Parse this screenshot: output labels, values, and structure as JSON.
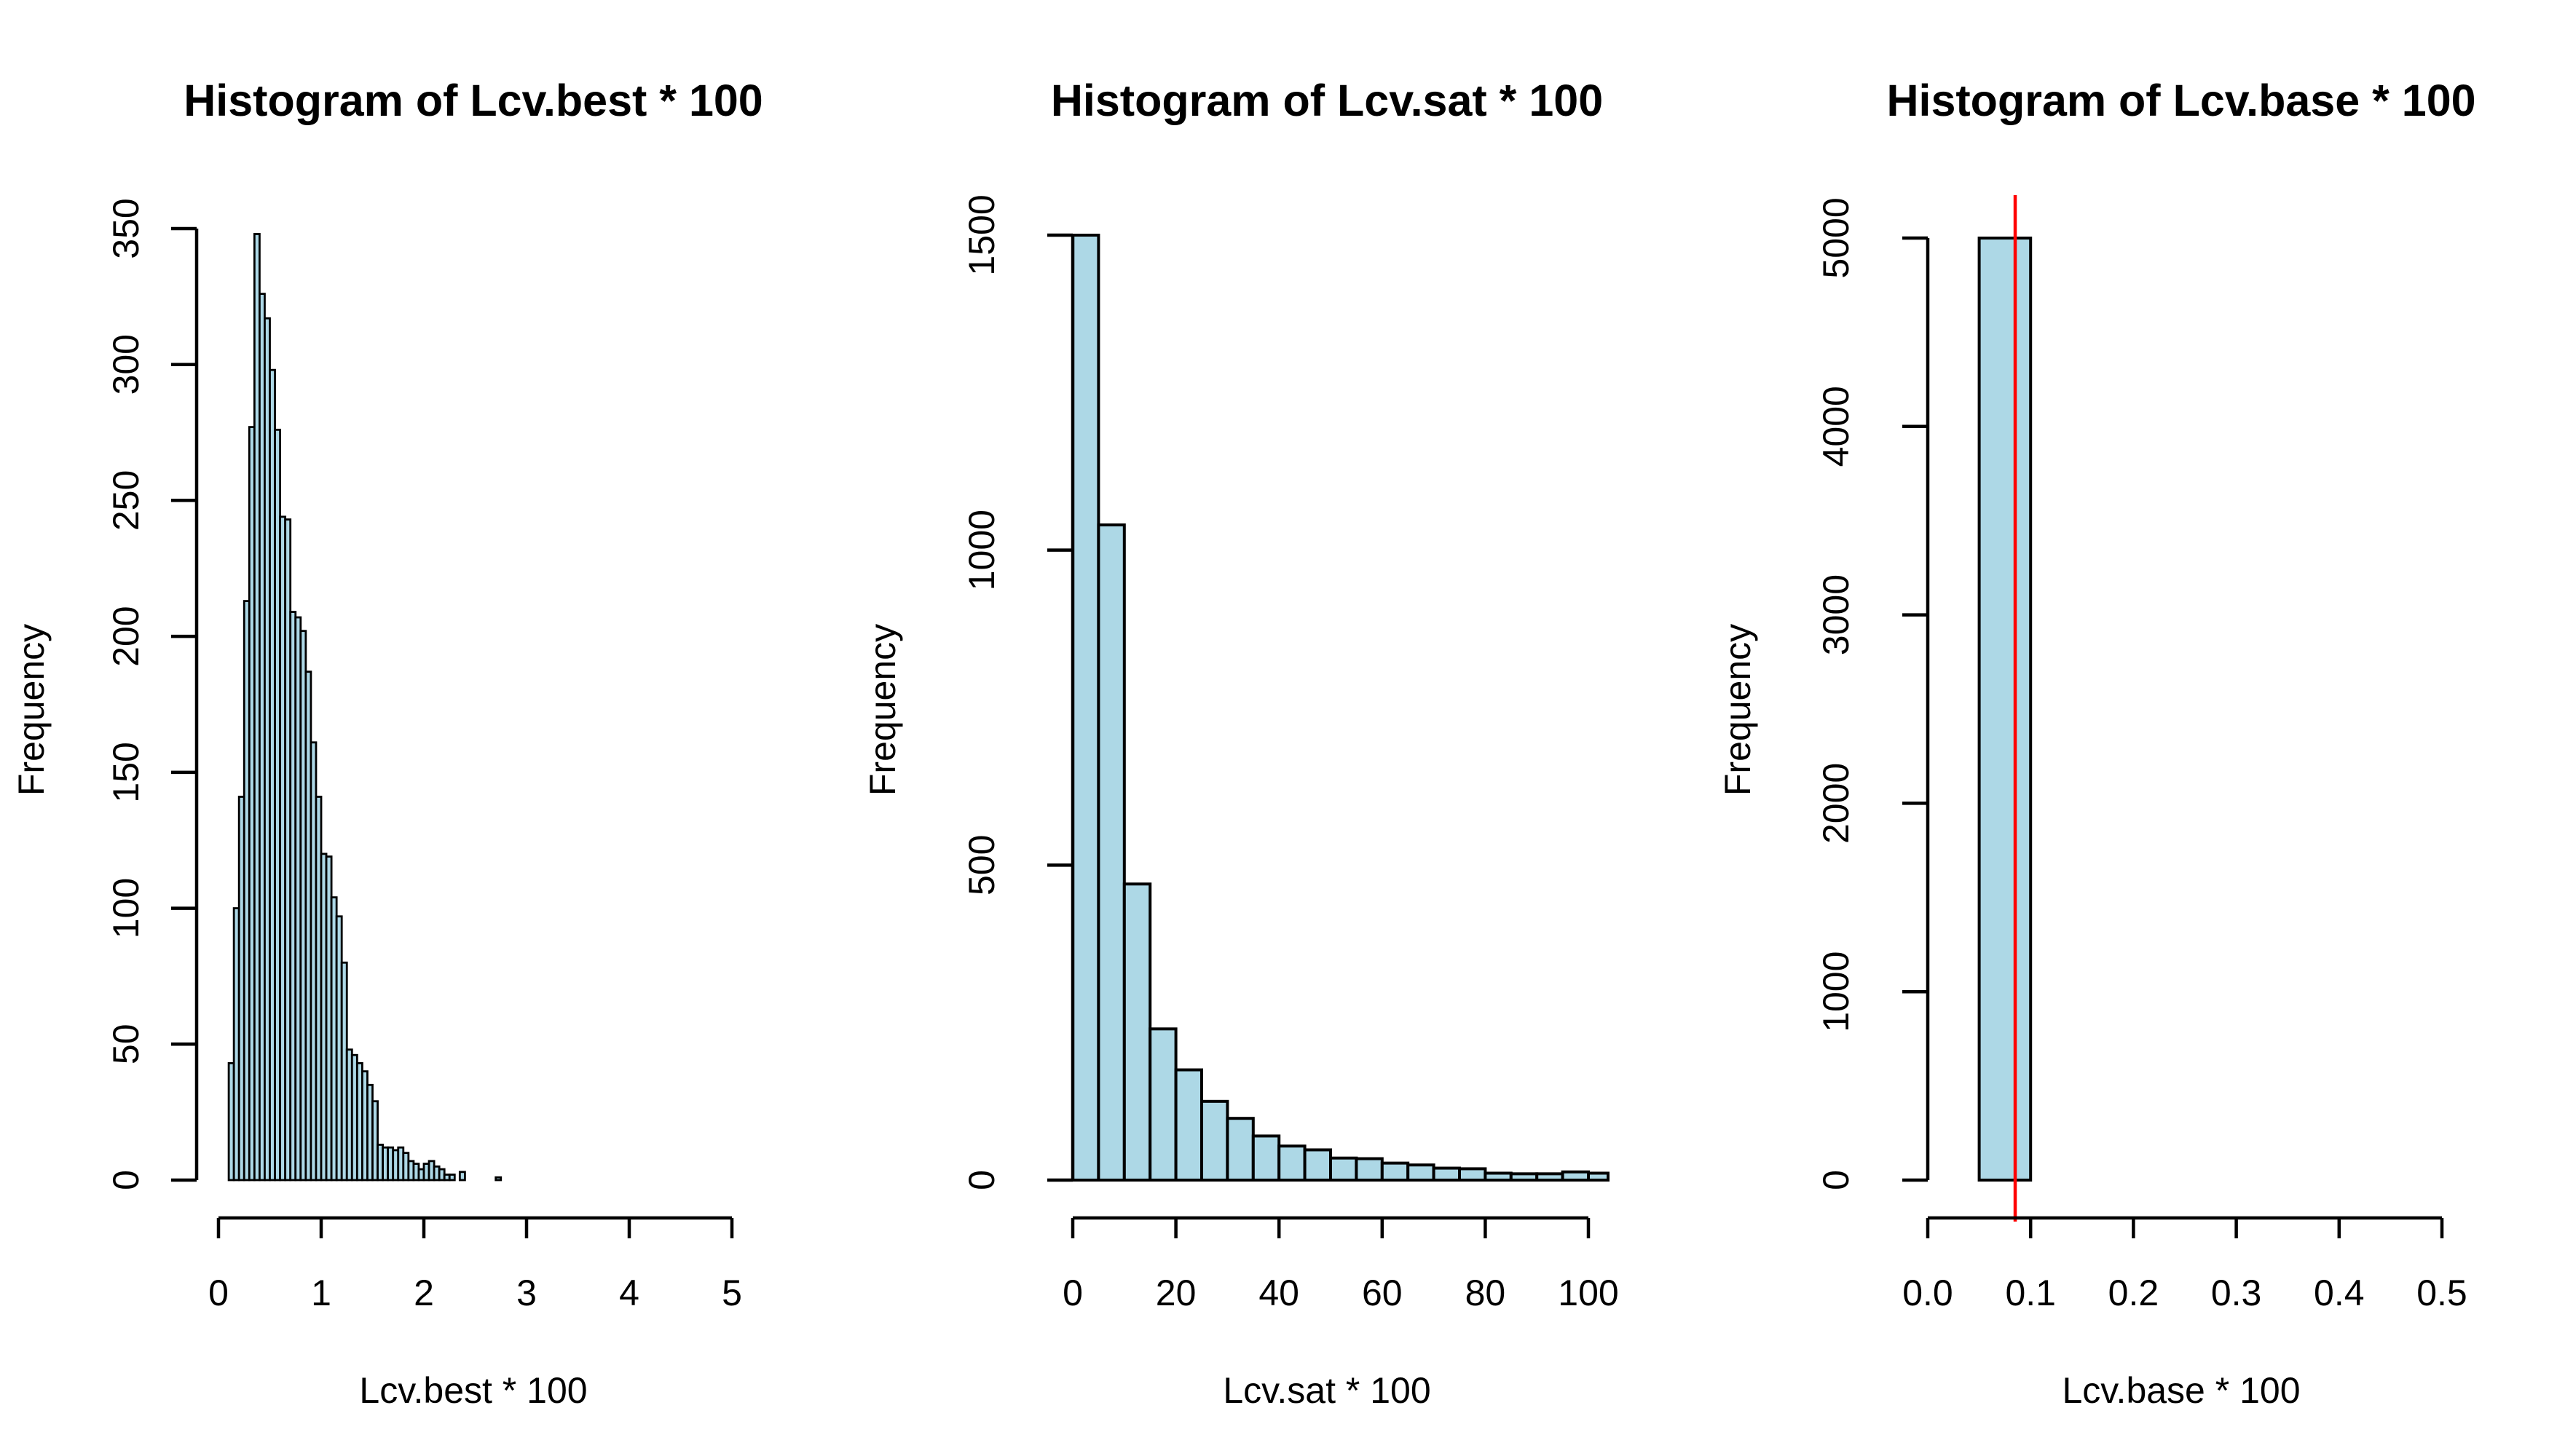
{
  "chart_data": [
    {
      "type": "bar",
      "title": "Histogram of Lcv.best * 100",
      "xlabel": "Lcv.best * 100",
      "ylabel": "Frequency",
      "bar_color": "#add8e6",
      "bin_width": 0.05,
      "bin_start": 0.1,
      "xlim": [
        0,
        5
      ],
      "ylim": [
        0,
        350
      ],
      "xticks": [
        0,
        1,
        2,
        3,
        4,
        5
      ],
      "yticks": [
        0,
        50,
        100,
        150,
        200,
        250,
        300,
        350
      ],
      "values": [
        43,
        100,
        141,
        213,
        277,
        348,
        326,
        317,
        298,
        276,
        244,
        243,
        209,
        207,
        202,
        187,
        161,
        141,
        120,
        119,
        104,
        97,
        80,
        48,
        46,
        43,
        40,
        35,
        29,
        13,
        12,
        12,
        11,
        12,
        10,
        7,
        6,
        4,
        6,
        7,
        5,
        4,
        2,
        2,
        0,
        3,
        0,
        0,
        0,
        0,
        0,
        0,
        1,
        0,
        0,
        0,
        0,
        0,
        0,
        0,
        0,
        0,
        0,
        0,
        0,
        0,
        0,
        0,
        0,
        0,
        0,
        0,
        0,
        0,
        0,
        0,
        0,
        0,
        0,
        0,
        0,
        0,
        0,
        0,
        0,
        0,
        0,
        0,
        0,
        0,
        0,
        0,
        0,
        0,
        0,
        0,
        0,
        0,
        0,
        0
      ]
    },
    {
      "type": "bar",
      "title": "Histogram of Lcv.sat * 100",
      "xlabel": "Lcv.sat * 100",
      "ylabel": "Frequency",
      "bar_color": "#add8e6",
      "bin_width": 5,
      "bin_start": 0,
      "xlim": [
        0,
        100
      ],
      "ylim": [
        0,
        1500
      ],
      "xticks": [
        0,
        20,
        40,
        60,
        80,
        100
      ],
      "yticks": [
        0,
        500,
        1000,
        1500
      ],
      "values": [
        1500,
        1040,
        470,
        240,
        175,
        125,
        98,
        70,
        54,
        48,
        35,
        34,
        27,
        24,
        19,
        18,
        11,
        10,
        10,
        13,
        11
      ]
    },
    {
      "type": "bar",
      "title": "Histogram of Lcv.base * 100",
      "xlabel": "Lcv.base * 100",
      "ylabel": "Frequency",
      "bar_color": "#add8e6",
      "bin_width": 0.05,
      "bin_start": 0.05,
      "xlim": [
        0,
        0.5
      ],
      "ylim": [
        0,
        5000
      ],
      "xticks": [
        "0.0",
        "0.1",
        "0.2",
        "0.3",
        "0.4",
        "0.5"
      ],
      "yticks": [
        0,
        1000,
        2000,
        3000,
        4000,
        5000
      ],
      "values": [
        5000
      ],
      "reference_line": {
        "x": 0.085,
        "color": "#ff0000"
      }
    }
  ]
}
